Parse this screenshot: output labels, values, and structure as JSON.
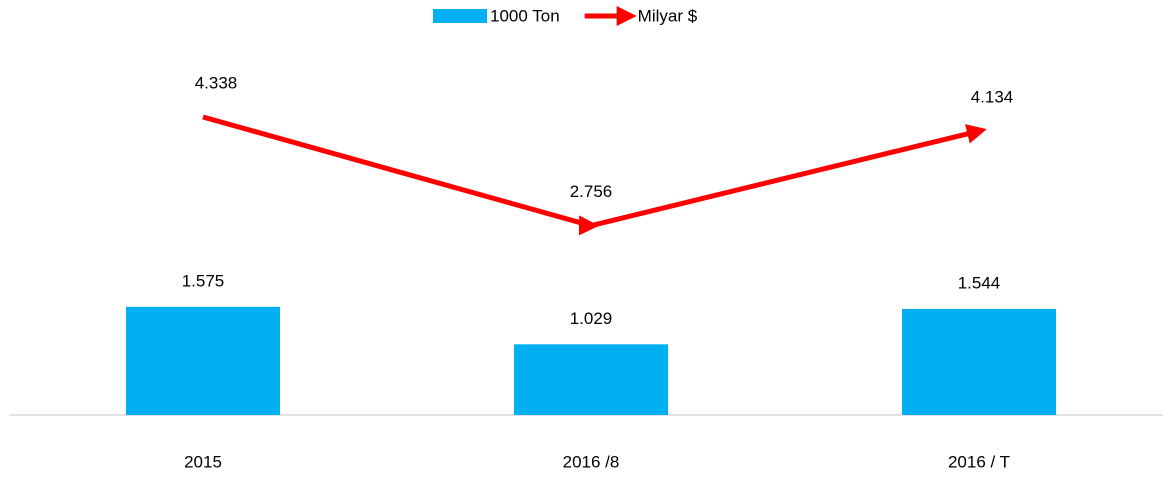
{
  "chart_data": {
    "type": "bar-line",
    "categories": [
      "2015",
      "2016 /8",
      "2016 / T"
    ],
    "series": [
      {
        "name": "1000 Ton",
        "type": "bar",
        "color": "#00b0f0",
        "values": [
          1575,
          1029,
          1544
        ],
        "value_labels": [
          "1.575",
          "1.029",
          "1.544"
        ]
      },
      {
        "name": "Milyar $",
        "type": "line",
        "axis": "y2",
        "color": "#ff0000",
        "values": [
          4338,
          2756,
          4134
        ],
        "value_labels": [
          "4.338",
          "2.756",
          "4.134"
        ]
      }
    ],
    "ylim": [
      0,
      5750
    ],
    "y2lim": [
      0,
      5750
    ],
    "legend": "top"
  }
}
